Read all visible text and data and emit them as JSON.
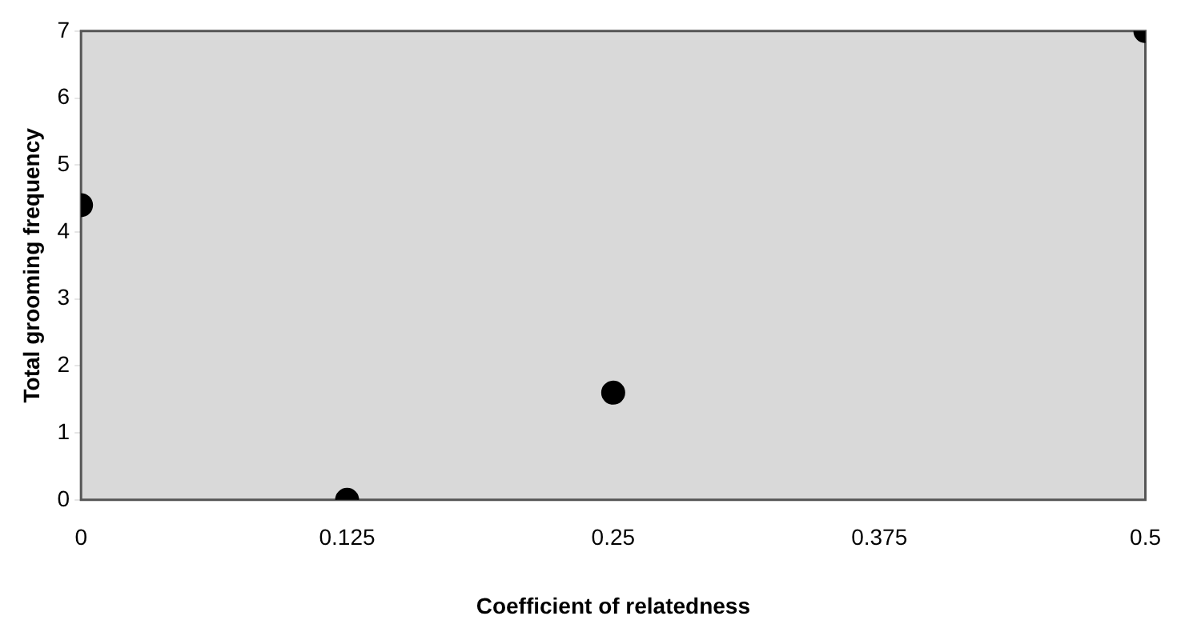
{
  "chart_data": {
    "type": "scatter",
    "xlabel": "Coefficient of relatedness",
    "ylabel": "Total grooming frequency",
    "series": [
      {
        "color": "#000000",
        "x": [
          0,
          0.125,
          0.25,
          0.5
        ],
        "values": [
          4.4,
          0,
          1.6,
          7
        ]
      }
    ],
    "xlim": [
      0,
      0.5
    ],
    "xticks": [
      0,
      0.125,
      0.25,
      0.375,
      0.5
    ],
    "ylim": [
      0,
      7
    ],
    "yticks": [
      0,
      1,
      2,
      3,
      4,
      5,
      6,
      7
    ],
    "grid": false,
    "legend": false,
    "marker": "circle"
  }
}
